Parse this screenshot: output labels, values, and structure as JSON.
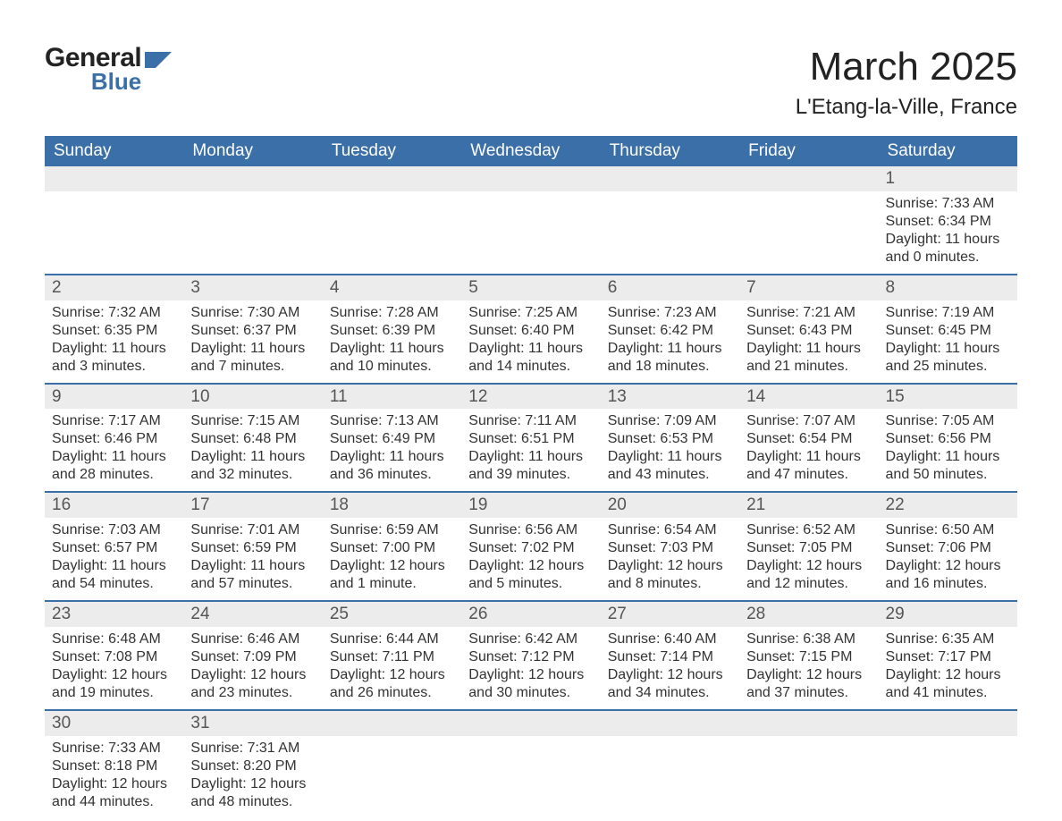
{
  "logo": {
    "line1": "General",
    "line2": "Blue",
    "accent_color": "#3a6fa8"
  },
  "title": "March 2025",
  "location": "L'Etang-la-Ville, France",
  "colors": {
    "header_bg": "#3a6fa8",
    "header_text": "#ffffff",
    "daynum_bg": "#ececec",
    "row_border": "#3a6fa8",
    "body_text": "#333333"
  },
  "fonts": {
    "title_size": 44,
    "location_size": 24,
    "th_size": 19,
    "cell_size": 16
  },
  "day_headers": [
    "Sunday",
    "Monday",
    "Tuesday",
    "Wednesday",
    "Thursday",
    "Friday",
    "Saturday"
  ],
  "weeks": [
    [
      null,
      null,
      null,
      null,
      null,
      null,
      {
        "n": "1",
        "sunrise": "Sunrise: 7:33 AM",
        "sunset": "Sunset: 6:34 PM",
        "dl1": "Daylight: 11 hours",
        "dl2": "and 0 minutes."
      }
    ],
    [
      {
        "n": "2",
        "sunrise": "Sunrise: 7:32 AM",
        "sunset": "Sunset: 6:35 PM",
        "dl1": "Daylight: 11 hours",
        "dl2": "and 3 minutes."
      },
      {
        "n": "3",
        "sunrise": "Sunrise: 7:30 AM",
        "sunset": "Sunset: 6:37 PM",
        "dl1": "Daylight: 11 hours",
        "dl2": "and 7 minutes."
      },
      {
        "n": "4",
        "sunrise": "Sunrise: 7:28 AM",
        "sunset": "Sunset: 6:39 PM",
        "dl1": "Daylight: 11 hours",
        "dl2": "and 10 minutes."
      },
      {
        "n": "5",
        "sunrise": "Sunrise: 7:25 AM",
        "sunset": "Sunset: 6:40 PM",
        "dl1": "Daylight: 11 hours",
        "dl2": "and 14 minutes."
      },
      {
        "n": "6",
        "sunrise": "Sunrise: 7:23 AM",
        "sunset": "Sunset: 6:42 PM",
        "dl1": "Daylight: 11 hours",
        "dl2": "and 18 minutes."
      },
      {
        "n": "7",
        "sunrise": "Sunrise: 7:21 AM",
        "sunset": "Sunset: 6:43 PM",
        "dl1": "Daylight: 11 hours",
        "dl2": "and 21 minutes."
      },
      {
        "n": "8",
        "sunrise": "Sunrise: 7:19 AM",
        "sunset": "Sunset: 6:45 PM",
        "dl1": "Daylight: 11 hours",
        "dl2": "and 25 minutes."
      }
    ],
    [
      {
        "n": "9",
        "sunrise": "Sunrise: 7:17 AM",
        "sunset": "Sunset: 6:46 PM",
        "dl1": "Daylight: 11 hours",
        "dl2": "and 28 minutes."
      },
      {
        "n": "10",
        "sunrise": "Sunrise: 7:15 AM",
        "sunset": "Sunset: 6:48 PM",
        "dl1": "Daylight: 11 hours",
        "dl2": "and 32 minutes."
      },
      {
        "n": "11",
        "sunrise": "Sunrise: 7:13 AM",
        "sunset": "Sunset: 6:49 PM",
        "dl1": "Daylight: 11 hours",
        "dl2": "and 36 minutes."
      },
      {
        "n": "12",
        "sunrise": "Sunrise: 7:11 AM",
        "sunset": "Sunset: 6:51 PM",
        "dl1": "Daylight: 11 hours",
        "dl2": "and 39 minutes."
      },
      {
        "n": "13",
        "sunrise": "Sunrise: 7:09 AM",
        "sunset": "Sunset: 6:53 PM",
        "dl1": "Daylight: 11 hours",
        "dl2": "and 43 minutes."
      },
      {
        "n": "14",
        "sunrise": "Sunrise: 7:07 AM",
        "sunset": "Sunset: 6:54 PM",
        "dl1": "Daylight: 11 hours",
        "dl2": "and 47 minutes."
      },
      {
        "n": "15",
        "sunrise": "Sunrise: 7:05 AM",
        "sunset": "Sunset: 6:56 PM",
        "dl1": "Daylight: 11 hours",
        "dl2": "and 50 minutes."
      }
    ],
    [
      {
        "n": "16",
        "sunrise": "Sunrise: 7:03 AM",
        "sunset": "Sunset: 6:57 PM",
        "dl1": "Daylight: 11 hours",
        "dl2": "and 54 minutes."
      },
      {
        "n": "17",
        "sunrise": "Sunrise: 7:01 AM",
        "sunset": "Sunset: 6:59 PM",
        "dl1": "Daylight: 11 hours",
        "dl2": "and 57 minutes."
      },
      {
        "n": "18",
        "sunrise": "Sunrise: 6:59 AM",
        "sunset": "Sunset: 7:00 PM",
        "dl1": "Daylight: 12 hours",
        "dl2": "and 1 minute."
      },
      {
        "n": "19",
        "sunrise": "Sunrise: 6:56 AM",
        "sunset": "Sunset: 7:02 PM",
        "dl1": "Daylight: 12 hours",
        "dl2": "and 5 minutes."
      },
      {
        "n": "20",
        "sunrise": "Sunrise: 6:54 AM",
        "sunset": "Sunset: 7:03 PM",
        "dl1": "Daylight: 12 hours",
        "dl2": "and 8 minutes."
      },
      {
        "n": "21",
        "sunrise": "Sunrise: 6:52 AM",
        "sunset": "Sunset: 7:05 PM",
        "dl1": "Daylight: 12 hours",
        "dl2": "and 12 minutes."
      },
      {
        "n": "22",
        "sunrise": "Sunrise: 6:50 AM",
        "sunset": "Sunset: 7:06 PM",
        "dl1": "Daylight: 12 hours",
        "dl2": "and 16 minutes."
      }
    ],
    [
      {
        "n": "23",
        "sunrise": "Sunrise: 6:48 AM",
        "sunset": "Sunset: 7:08 PM",
        "dl1": "Daylight: 12 hours",
        "dl2": "and 19 minutes."
      },
      {
        "n": "24",
        "sunrise": "Sunrise: 6:46 AM",
        "sunset": "Sunset: 7:09 PM",
        "dl1": "Daylight: 12 hours",
        "dl2": "and 23 minutes."
      },
      {
        "n": "25",
        "sunrise": "Sunrise: 6:44 AM",
        "sunset": "Sunset: 7:11 PM",
        "dl1": "Daylight: 12 hours",
        "dl2": "and 26 minutes."
      },
      {
        "n": "26",
        "sunrise": "Sunrise: 6:42 AM",
        "sunset": "Sunset: 7:12 PM",
        "dl1": "Daylight: 12 hours",
        "dl2": "and 30 minutes."
      },
      {
        "n": "27",
        "sunrise": "Sunrise: 6:40 AM",
        "sunset": "Sunset: 7:14 PM",
        "dl1": "Daylight: 12 hours",
        "dl2": "and 34 minutes."
      },
      {
        "n": "28",
        "sunrise": "Sunrise: 6:38 AM",
        "sunset": "Sunset: 7:15 PM",
        "dl1": "Daylight: 12 hours",
        "dl2": "and 37 minutes."
      },
      {
        "n": "29",
        "sunrise": "Sunrise: 6:35 AM",
        "sunset": "Sunset: 7:17 PM",
        "dl1": "Daylight: 12 hours",
        "dl2": "and 41 minutes."
      }
    ],
    [
      {
        "n": "30",
        "sunrise": "Sunrise: 7:33 AM",
        "sunset": "Sunset: 8:18 PM",
        "dl1": "Daylight: 12 hours",
        "dl2": "and 44 minutes."
      },
      {
        "n": "31",
        "sunrise": "Sunrise: 7:31 AM",
        "sunset": "Sunset: 8:20 PM",
        "dl1": "Daylight: 12 hours",
        "dl2": "and 48 minutes."
      },
      null,
      null,
      null,
      null,
      null
    ]
  ]
}
